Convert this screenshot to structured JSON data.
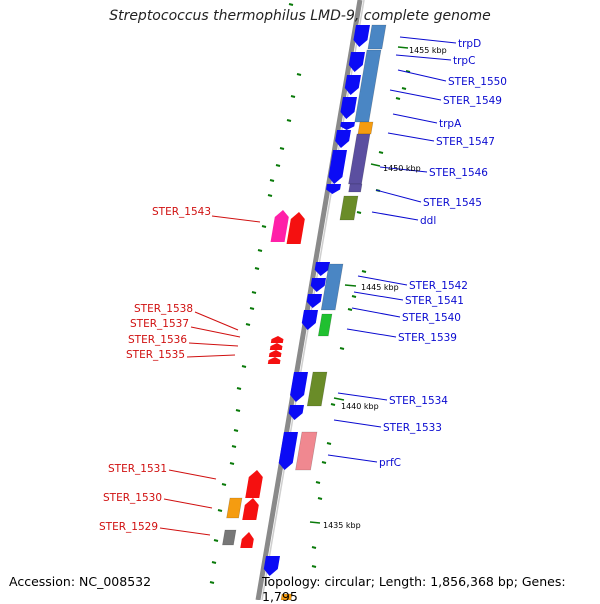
{
  "title": "Streptococcus thermophilus LMD-9, complete genome",
  "footer": {
    "accession": "Accession: NC_008532",
    "topology": "Topology: circular; Length: 1,856,368 bp; Genes: 1,795"
  },
  "colors": {
    "forward_label": "#0a0ad0",
    "reverse_label": "#d01010",
    "gene_blue": "#0b0bf5",
    "gene_red": "#f51010",
    "gene_magenta": "#ff20a8",
    "gene_orange": "#f59c10",
    "gene_green": "#6a8c28",
    "gene_bright_green": "#20c030",
    "gene_gray": "#777777",
    "cog_steelblue": "#4a86c4",
    "cog_purple": "#5b4fa0",
    "cog_pink": "#f08890",
    "backbone": "#8a8a8a",
    "gc_skew": "#0a7a0a"
  },
  "tick_labels": [
    "1455 kbp",
    "1450 kbp",
    "1445 kbp",
    "1440 kbp",
    "1435 kbp"
  ],
  "forward_genes": [
    "trpD",
    "trpC",
    "STER_1550",
    "STER_1549",
    "trpA",
    "STER_1547",
    "STER_1546",
    "STER_1545",
    "ddl",
    "STER_1542",
    "STER_1541",
    "STER_1540",
    "STER_1539",
    "STER_1534",
    "STER_1533",
    "prfC"
  ],
  "reverse_genes": [
    "STER_1543",
    "STER_1538",
    "STER_1537",
    "STER_1536",
    "STER_1535",
    "STER_1531",
    "STER_1530",
    "STER_1529"
  ]
}
